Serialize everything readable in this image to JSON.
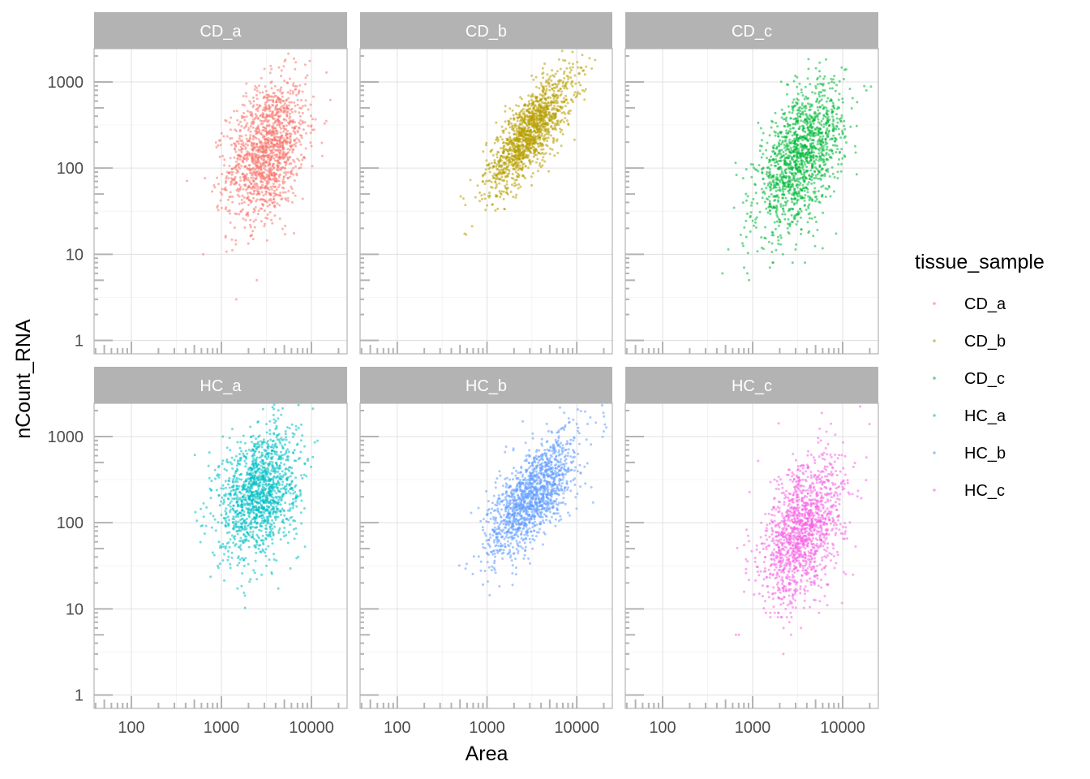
{
  "chart_data": {
    "type": "scatter",
    "facet_by": "tissue_sample",
    "xlabel": "Area",
    "ylabel": "nCount_RNA",
    "x_scale": "log10",
    "y_scale": "log10",
    "xlim": [
      38.5,
      24900
    ],
    "ylim": [
      0.7,
      2430
    ],
    "x_ticks": [
      100,
      1000,
      10000
    ],
    "x_tick_labels": [
      "100",
      "1000",
      "10000"
    ],
    "y_ticks": [
      1,
      10,
      100,
      1000
    ],
    "y_tick_labels": [
      "1",
      "10",
      "100",
      "1000"
    ],
    "grid": true,
    "legend": {
      "title": "tissue_sample",
      "position": "right"
    },
    "series": [
      {
        "name": "CD_a",
        "color": "#F8766D",
        "n_points": 1400,
        "median_area": 3200,
        "median_nCount": 160,
        "log_area_sd": 0.22,
        "log_count_sd": 0.38,
        "slope": 0.6
      },
      {
        "name": "CD_b",
        "color": "#B79F00",
        "n_points": 1400,
        "median_area": 3000,
        "median_nCount": 260,
        "log_area_sd": 0.24,
        "log_count_sd": 0.22,
        "slope": 1.1
      },
      {
        "name": "CD_c",
        "color": "#00BA38",
        "n_points": 1400,
        "median_area": 3400,
        "median_nCount": 130,
        "log_area_sd": 0.24,
        "log_count_sd": 0.36,
        "slope": 0.9
      },
      {
        "name": "HC_a",
        "color": "#00BFC4",
        "n_points": 1400,
        "median_area": 2600,
        "median_nCount": 230,
        "log_area_sd": 0.22,
        "log_count_sd": 0.36,
        "slope": 0.5
      },
      {
        "name": "HC_b",
        "color": "#619CFF",
        "n_points": 1400,
        "median_area": 3200,
        "median_nCount": 200,
        "log_area_sd": 0.25,
        "log_count_sd": 0.26,
        "slope": 1.0
      },
      {
        "name": "HC_c",
        "color": "#F564E3",
        "n_points": 1400,
        "median_area": 3600,
        "median_nCount": 80,
        "log_area_sd": 0.23,
        "log_count_sd": 0.38,
        "slope": 0.8
      }
    ]
  }
}
